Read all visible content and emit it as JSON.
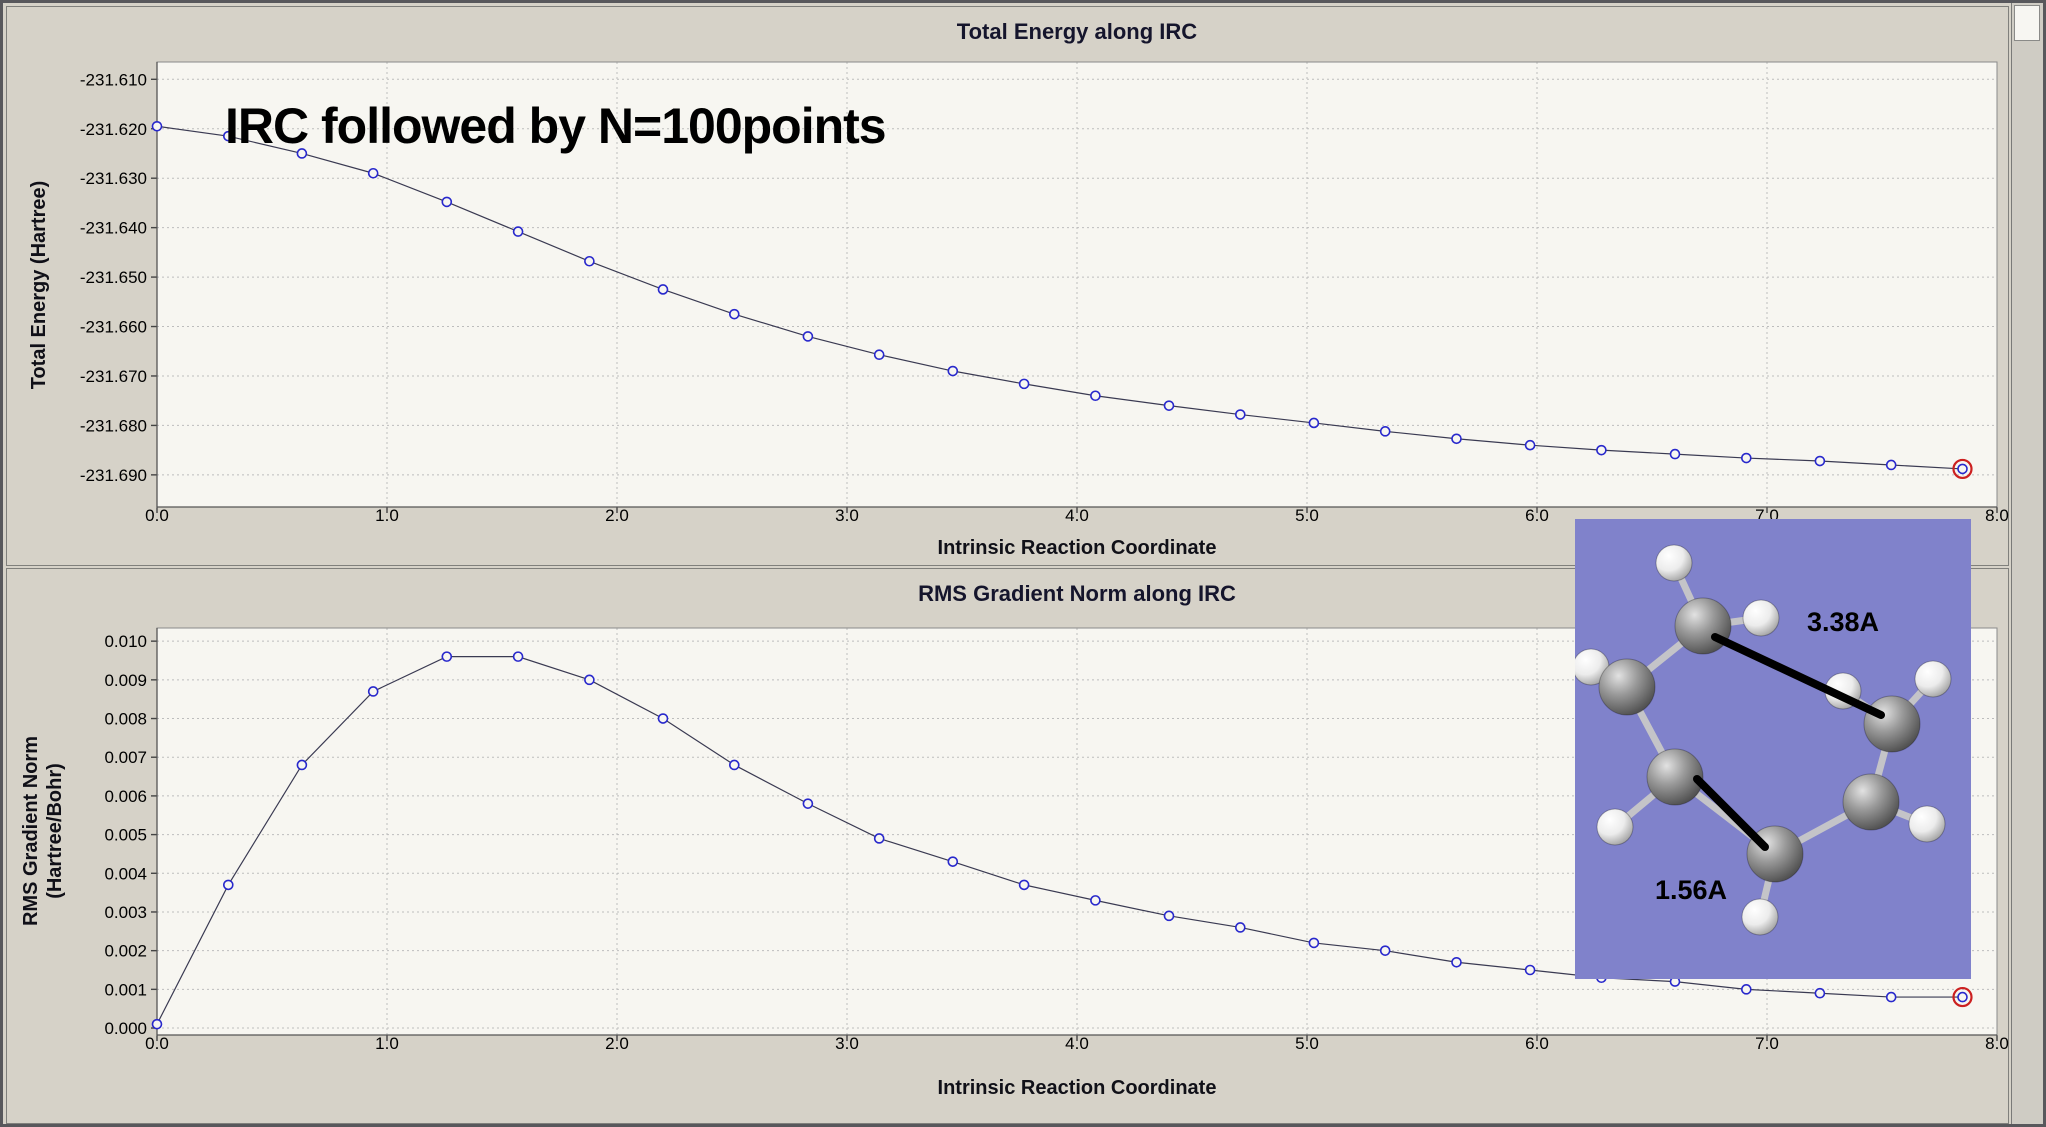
{
  "annotation": "IRC followed by N=100points",
  "colors": {
    "marker": "#2828cc",
    "endpoint_ring": "#cc2020",
    "line": "#3a3a52",
    "plot_bg": "#f7f6f1",
    "grid": "#bdbdbd",
    "inset_bg": "#8082cb"
  },
  "inset": {
    "bond_labels": [
      "3.38A",
      "1.56A"
    ]
  },
  "chart_data": [
    {
      "type": "line",
      "title": "Total Energy along IRC",
      "xlabel": "Intrinsic Reaction Coordinate",
      "ylabel_lines": [
        "Total Energy (Hartree)"
      ],
      "legend": "none",
      "grid": true,
      "xlim": [
        0,
        8
      ],
      "ylim": [
        -231.6965,
        -231.6065
      ],
      "xticks": [
        0,
        1,
        2,
        3,
        4,
        5,
        6,
        7,
        8
      ],
      "xtick_labels": [
        "0.0",
        "1.0",
        "2.0",
        "3.0",
        "4.0",
        "5.0",
        "6.0",
        "7.0",
        "8.0"
      ],
      "yticks": [
        -231.61,
        -231.62,
        -231.63,
        -231.64,
        -231.65,
        -231.66,
        -231.67,
        -231.68,
        -231.69
      ],
      "ytick_labels": [
        "-231.610",
        "-231.620",
        "-231.630",
        "-231.640",
        "-231.650",
        "-231.660",
        "-231.670",
        "-231.680",
        "-231.690"
      ],
      "x": [
        0.0,
        0.31,
        0.63,
        0.94,
        1.26,
        1.57,
        1.88,
        2.2,
        2.51,
        2.83,
        3.14,
        3.46,
        3.77,
        4.08,
        4.4,
        4.71,
        5.03,
        5.34,
        5.65,
        5.97,
        6.28,
        6.6,
        6.91,
        7.23,
        7.54,
        7.85
      ],
      "y": [
        -231.6195,
        -231.6215,
        -231.625,
        -231.629,
        -231.6348,
        -231.6408,
        -231.6468,
        -231.6525,
        -231.6575,
        -231.662,
        -231.6657,
        -231.669,
        -231.6716,
        -231.674,
        -231.676,
        -231.6778,
        -231.6795,
        -231.6812,
        -231.6827,
        -231.684,
        -231.685,
        -231.6858,
        -231.6866,
        -231.6872,
        -231.688,
        -231.6888
      ],
      "endpoint_highlighted": true
    },
    {
      "type": "line",
      "title": "RMS Gradient Norm along IRC",
      "xlabel": "Intrinsic Reaction Coordinate",
      "ylabel_lines": [
        "RMS Gradient Norm",
        "(Hartree/Bohr)"
      ],
      "legend": "none",
      "grid": true,
      "xlim": [
        0,
        8
      ],
      "ylim": [
        -0.00018,
        0.01034
      ],
      "xticks": [
        0,
        1,
        2,
        3,
        4,
        5,
        6,
        7,
        8
      ],
      "xtick_labels": [
        "0.0",
        "1.0",
        "2.0",
        "3.0",
        "4.0",
        "5.0",
        "6.0",
        "7.0",
        "8.0"
      ],
      "yticks": [
        0.0,
        0.001,
        0.002,
        0.003,
        0.004,
        0.005,
        0.006,
        0.007,
        0.008,
        0.009,
        0.01
      ],
      "ytick_labels": [
        "0.000",
        "0.001",
        "0.002",
        "0.003",
        "0.004",
        "0.005",
        "0.006",
        "0.007",
        "0.008",
        "0.009",
        "0.010"
      ],
      "x": [
        0.0,
        0.31,
        0.63,
        0.94,
        1.26,
        1.57,
        1.88,
        2.2,
        2.51,
        2.83,
        3.14,
        3.46,
        3.77,
        4.08,
        4.4,
        4.71,
        5.03,
        5.34,
        5.65,
        5.97,
        6.28,
        6.6,
        6.91,
        7.23,
        7.54,
        7.85
      ],
      "y": [
        0.0001,
        0.0037,
        0.0068,
        0.0087,
        0.0096,
        0.0096,
        0.009,
        0.008,
        0.0068,
        0.0058,
        0.0049,
        0.0043,
        0.0037,
        0.0033,
        0.0029,
        0.0026,
        0.0022,
        0.002,
        0.0017,
        0.0015,
        0.0013,
        0.0012,
        0.001,
        0.0009,
        0.0008,
        0.0008
      ],
      "endpoint_highlighted": true
    }
  ]
}
